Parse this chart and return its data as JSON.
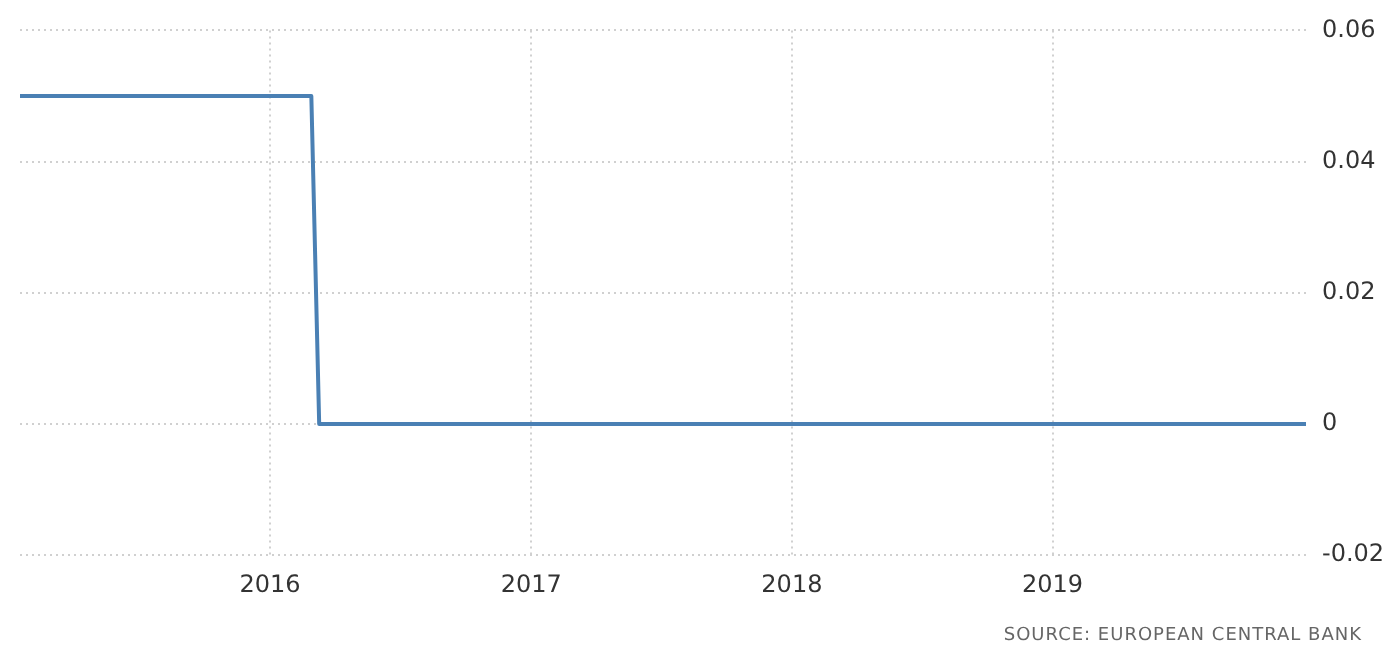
{
  "chart_data": {
    "type": "line",
    "x": [
      "2015-01-16",
      "2016-02-28",
      "2016-03-10",
      "2019-12-22"
    ],
    "series": [
      {
        "color": "#4a80b4",
        "values": [
          0.05,
          0.05,
          0,
          0
        ]
      }
    ],
    "xlim": [
      "2015-01-16",
      "2019-12-22"
    ],
    "xticks": [
      "2016",
      "2017",
      "2018",
      "2019"
    ],
    "ylim": [
      -0.02,
      0.06
    ],
    "yticks": [
      -0.02,
      0,
      0.02,
      0.04,
      0.06
    ],
    "grid": true,
    "marker": "none",
    "line_style": "solid",
    "annotations": [
      "SOURCE: EUROPEAN CENTRAL BANK"
    ]
  }
}
